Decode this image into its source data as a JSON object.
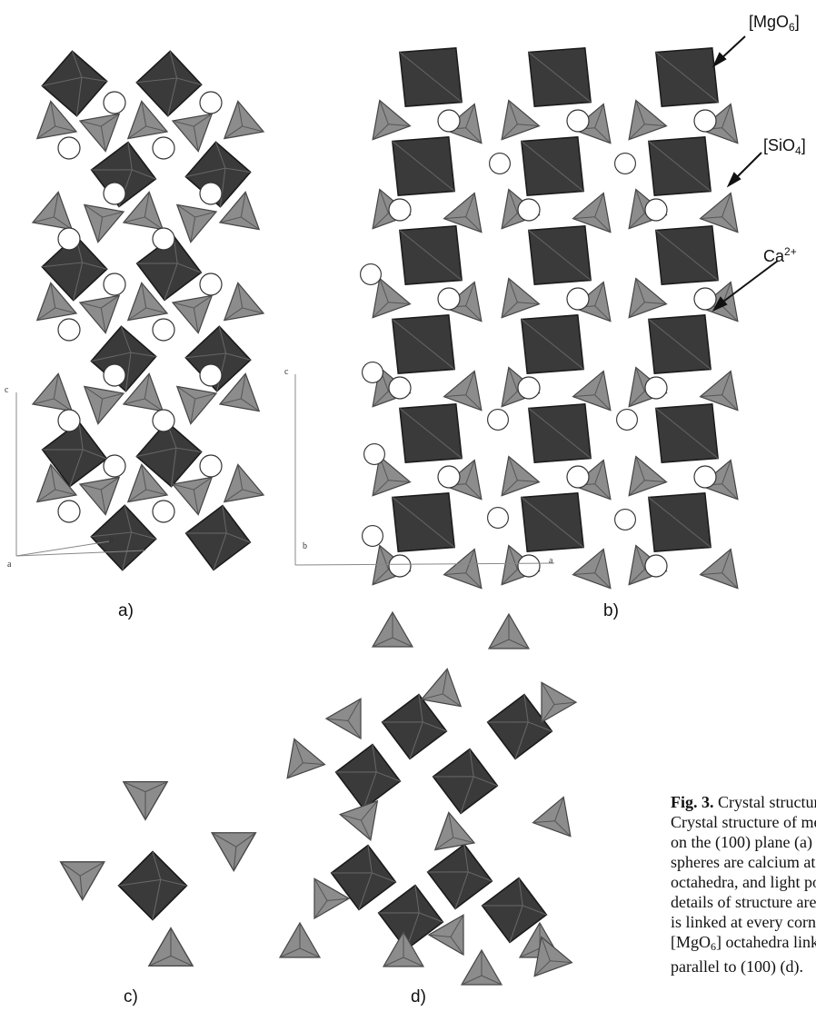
{
  "panels": {
    "a": {
      "label": "a)"
    },
    "b": {
      "label": "b)"
    },
    "c": {
      "label": "c)"
    },
    "d": {
      "label": "d)"
    }
  },
  "callouts": {
    "mgo6": {
      "open": "[MgO",
      "sub": "6",
      "close": "]"
    },
    "sio4": {
      "open": "[SiO",
      "sub": "4",
      "close": "]"
    },
    "ca": {
      "base": "Ca",
      "sup": "2+"
    }
  },
  "axes": {
    "a_panel": {
      "c": "c",
      "a": "a",
      "b": "b"
    },
    "b_panel": {
      "c": "c",
      "b": "b",
      "a": "a"
    }
  },
  "caption": {
    "fig_label": "Fig. 3.",
    "line1": " Crystal structure",
    "line2": "Crystal structure of mer",
    "line3": "on the (100) plane (a)",
    "line4": "spheres are calcium at",
    "line5": "octahedra, and light poly",
    "line6": "details of structure are",
    "line7": "is linked at every corn",
    "line8_pre": "[MgO",
    "line8_sub": "6",
    "line8_post": "] octahedra linked",
    "line9": "parallel to (100) (d)."
  },
  "colors": {
    "octahedron": "#3a3a3a",
    "tetrahedron": "#8c8c8c",
    "calcium": "#ffffff",
    "outline": "#1a1a1a"
  }
}
